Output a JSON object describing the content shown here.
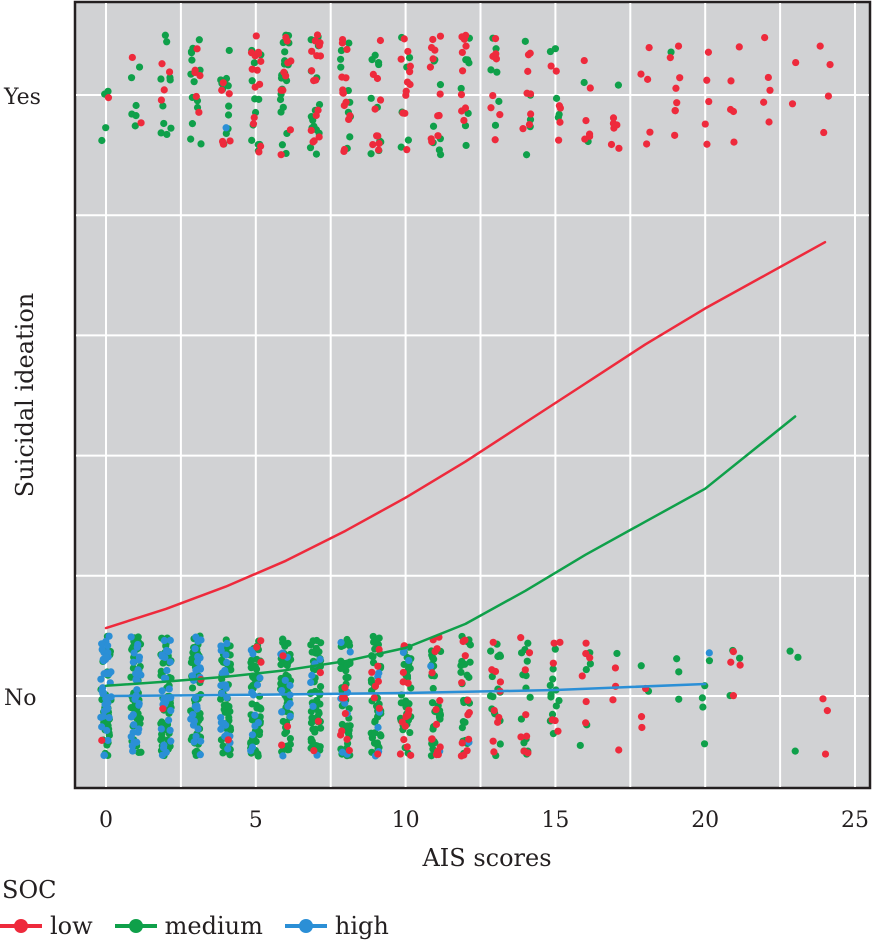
{
  "chart_data": {
    "type": "scatter",
    "title": "",
    "xlabel": "AIS scores",
    "ylabel": "Suicidal ideation",
    "xlim": [
      -1.0,
      25.5
    ],
    "ylim": [
      -0.15,
      1.16
    ],
    "x_ticks": [
      0,
      5,
      10,
      15,
      20,
      25
    ],
    "x_tick_labels": [
      "0",
      "5",
      "10",
      "15",
      "20",
      "25"
    ],
    "y_ticks": [
      0,
      1
    ],
    "y_tick_labels": [
      "No",
      "Yes"
    ],
    "y_gridlines": [
      0,
      0.2,
      0.4,
      0.6,
      0.8,
      1.0
    ],
    "x_gridlines": [
      0,
      2.5,
      5,
      7.5,
      10,
      12.5,
      15,
      17.5,
      20,
      22.5,
      25
    ],
    "grid": true,
    "background": "#d1d2d4",
    "legend": {
      "title": "SOC",
      "placement": "bottom-left",
      "entries": [
        {
          "name": "low",
          "color": "#ee2a3c"
        },
        {
          "name": "medium",
          "color": "#0fa04a"
        },
        {
          "name": "high",
          "color": "#2b8fd6"
        }
      ]
    },
    "series": [
      {
        "name": "low",
        "color": "#ee2a3c",
        "fitted_curve": {
          "x": [
            0,
            2,
            4,
            6,
            8,
            10,
            12,
            14,
            16,
            18,
            20,
            22,
            24
          ],
          "y": [
            0.113,
            0.145,
            0.182,
            0.225,
            0.275,
            0.33,
            0.39,
            0.455,
            0.52,
            0.585,
            0.645,
            0.7,
            0.755
          ]
        }
      },
      {
        "name": "medium",
        "color": "#0fa04a",
        "fitted_curve": {
          "x": [
            0,
            2,
            4,
            6,
            8,
            10,
            12,
            14,
            16,
            18,
            20,
            22,
            23
          ],
          "y": [
            0.017,
            0.024,
            0.032,
            0.043,
            0.058,
            0.08,
            0.12,
            0.175,
            0.235,
            0.29,
            0.345,
            0.425,
            0.465
          ]
        }
      },
      {
        "name": "high",
        "color": "#2b8fd6",
        "fitted_curve": {
          "x": [
            0,
            5,
            10,
            15,
            20
          ],
          "y": [
            0.0,
            0.002,
            0.005,
            0.01,
            0.02
          ]
        }
      }
    ],
    "jitter_points": {
      "description": "Jittered binary outcomes (No=0, Yes=1) by AIS score, colored by SOC group",
      "yes": [
        {
          "x": 0,
          "low": 1,
          "medium": 4,
          "high": 0
        },
        {
          "x": 1,
          "low": 2,
          "medium": 6,
          "high": 0
        },
        {
          "x": 2,
          "low": 4,
          "medium": 10,
          "high": 0
        },
        {
          "x": 3,
          "low": 6,
          "medium": 14,
          "high": 0
        },
        {
          "x": 4,
          "low": 6,
          "medium": 12,
          "high": 1
        },
        {
          "x": 5,
          "low": 14,
          "medium": 12,
          "high": 0
        },
        {
          "x": 6,
          "low": 10,
          "medium": 22,
          "high": 0
        },
        {
          "x": 7,
          "low": 16,
          "medium": 16,
          "high": 0
        },
        {
          "x": 8,
          "low": 14,
          "medium": 10,
          "high": 0
        },
        {
          "x": 9,
          "low": 10,
          "medium": 10,
          "high": 0
        },
        {
          "x": 10,
          "low": 12,
          "medium": 6,
          "high": 0
        },
        {
          "x": 11,
          "low": 12,
          "medium": 8,
          "high": 0
        },
        {
          "x": 12,
          "low": 10,
          "medium": 8,
          "high": 0
        },
        {
          "x": 13,
          "low": 8,
          "medium": 6,
          "high": 0
        },
        {
          "x": 14,
          "low": 8,
          "medium": 5,
          "high": 0
        },
        {
          "x": 15,
          "low": 6,
          "medium": 5,
          "high": 0
        },
        {
          "x": 16,
          "low": 6,
          "medium": 2,
          "high": 0
        },
        {
          "x": 17,
          "low": 6,
          "medium": 1,
          "high": 0
        },
        {
          "x": 18,
          "low": 5,
          "medium": 0,
          "high": 0
        },
        {
          "x": 19,
          "low": 8,
          "medium": 1,
          "high": 0
        },
        {
          "x": 20,
          "low": 5,
          "medium": 0,
          "high": 0
        },
        {
          "x": 21,
          "low": 5,
          "medium": 0,
          "high": 0
        },
        {
          "x": 22,
          "low": 5,
          "medium": 0,
          "high": 0
        },
        {
          "x": 23,
          "low": 2,
          "medium": 0,
          "high": 0
        },
        {
          "x": 24,
          "low": 4,
          "medium": 0,
          "high": 0
        }
      ],
      "no": [
        {
          "x": 0,
          "low": 1,
          "medium": 40,
          "high": 40
        },
        {
          "x": 1,
          "low": 0,
          "medium": 45,
          "high": 30
        },
        {
          "x": 2,
          "low": 1,
          "medium": 45,
          "high": 30
        },
        {
          "x": 3,
          "low": 1,
          "medium": 50,
          "high": 28
        },
        {
          "x": 4,
          "low": 1,
          "medium": 45,
          "high": 25
        },
        {
          "x": 5,
          "low": 3,
          "medium": 55,
          "high": 12
        },
        {
          "x": 6,
          "low": 3,
          "medium": 55,
          "high": 12
        },
        {
          "x": 7,
          "low": 3,
          "medium": 55,
          "high": 6
        },
        {
          "x": 8,
          "low": 8,
          "medium": 40,
          "high": 8
        },
        {
          "x": 9,
          "low": 8,
          "medium": 40,
          "high": 6
        },
        {
          "x": 10,
          "low": 14,
          "medium": 35,
          "high": 3
        },
        {
          "x": 11,
          "low": 14,
          "medium": 30,
          "high": 2
        },
        {
          "x": 12,
          "low": 12,
          "medium": 25,
          "high": 1
        },
        {
          "x": 13,
          "low": 10,
          "medium": 16,
          "high": 0
        },
        {
          "x": 14,
          "low": 8,
          "medium": 14,
          "high": 0
        },
        {
          "x": 15,
          "low": 6,
          "medium": 12,
          "high": 0
        },
        {
          "x": 16,
          "low": 6,
          "medium": 5,
          "high": 0
        },
        {
          "x": 17,
          "low": 4,
          "medium": 1,
          "high": 0
        },
        {
          "x": 18,
          "low": 3,
          "medium": 2,
          "high": 0
        },
        {
          "x": 19,
          "low": 0,
          "medium": 3,
          "high": 0
        },
        {
          "x": 20,
          "low": 0,
          "medium": 5,
          "high": 1
        },
        {
          "x": 21,
          "low": 4,
          "medium": 3,
          "high": 0
        },
        {
          "x": 23,
          "low": 0,
          "medium": 3,
          "high": 0
        },
        {
          "x": 24,
          "low": 3,
          "medium": 0,
          "high": 0
        }
      ]
    }
  }
}
